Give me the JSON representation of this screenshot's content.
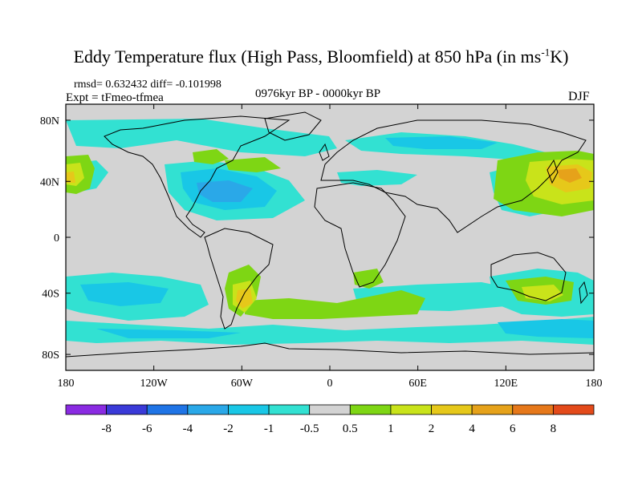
{
  "title": {
    "main": "Eddy Temperature flux (High Pass, Bloomfield) at 850 hPa (in ms",
    "sup": "-1",
    "tail": "K)"
  },
  "subtitle": {
    "stats": "rmsd= 0.632432 diff= -0.101998",
    "expt": "Expt = tFmeo-tfmea",
    "period": "0976kyr BP - 0000kyr BP",
    "season": "DJF"
  },
  "axes": {
    "x_ticks": [
      "180",
      "120W",
      "60W",
      "0",
      "60E",
      "120E",
      "180"
    ],
    "y_ticks": [
      "80N",
      "40N",
      "0",
      "40S",
      "80S"
    ]
  },
  "colorbar": {
    "colors": [
      "#8a2be2",
      "#3a3ad8",
      "#1f74e6",
      "#2aa8e8",
      "#19c7e6",
      "#32e1d2",
      "#d3d3d3",
      "#7ed614",
      "#c9e31a",
      "#e6c81a",
      "#e6a21a",
      "#e6781a",
      "#e34a1a"
    ],
    "labels": [
      "-8",
      "-6",
      "-4",
      "-2",
      "-1",
      "-0.5",
      "0.5",
      "1",
      "2",
      "4",
      "6",
      "8"
    ]
  },
  "palette": {
    "ocean_neutral": "#d3d3d3",
    "coast": "#000000"
  }
}
